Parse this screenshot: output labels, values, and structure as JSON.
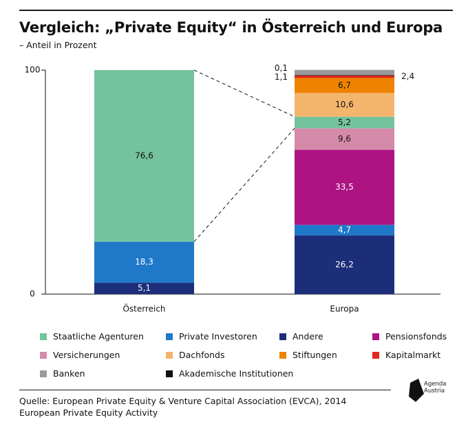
{
  "header": {
    "title": "Vergleich: „Private Equity“ in Österreich und Europa",
    "subtitle": "– Anteil in Prozent"
  },
  "chart_data": {
    "type": "bar",
    "stacked": true,
    "ylim": [
      0,
      100
    ],
    "yticks": [
      "0",
      "100"
    ],
    "categories": [
      "Österreich",
      "Europa"
    ],
    "segment_order": [
      "Andere",
      "Private Investoren",
      "Pensionsfonds",
      "Versicherungen",
      "Staatliche Agenturen",
      "Dachfonds",
      "Stiftungen",
      "Kapitalmarkt",
      "Akademische Institutionen",
      "Banken"
    ],
    "colors": {
      "Staatliche Agenturen": "#74c39c",
      "Private Investoren": "#1f78c8",
      "Andere": "#1c2e7a",
      "Pensionsfonds": "#ad1482",
      "Versicherungen": "#d58aa9",
      "Dachfonds": "#f4b56c",
      "Stiftungen": "#ee8300",
      "Kapitalmarkt": "#e2261b",
      "Banken": "#9a9a9a",
      "Akademische Institutionen": "#111111"
    },
    "label_colors": {
      "Andere": "#ffffff",
      "Private Investoren": "#ffffff",
      "Pensionsfonds": "#ffffff"
    },
    "series": [
      {
        "name": "Staatliche Agenturen",
        "values": [
          76.6,
          5.2
        ],
        "labels": [
          "76,6",
          "5,2"
        ]
      },
      {
        "name": "Private Investoren",
        "values": [
          18.3,
          4.7
        ],
        "labels": [
          "18,3",
          "4,7"
        ]
      },
      {
        "name": "Andere",
        "values": [
          5.1,
          26.2
        ],
        "labels": [
          "5,1",
          "26,2"
        ]
      },
      {
        "name": "Pensionsfonds",
        "values": [
          0,
          33.5
        ],
        "labels": [
          "",
          "33,5"
        ]
      },
      {
        "name": "Versicherungen",
        "values": [
          0,
          9.6
        ],
        "labels": [
          "",
          "9,6"
        ]
      },
      {
        "name": "Dachfonds",
        "values": [
          0,
          10.6
        ],
        "labels": [
          "",
          "10,6"
        ]
      },
      {
        "name": "Stiftungen",
        "values": [
          0,
          6.7
        ],
        "labels": [
          "",
          "6,7"
        ]
      },
      {
        "name": "Kapitalmarkt",
        "values": [
          0,
          1.1
        ],
        "labels": [
          "",
          "1,1"
        ],
        "label_side": "left"
      },
      {
        "name": "Banken",
        "values": [
          0,
          2.4
        ],
        "labels": [
          "",
          "2,4"
        ],
        "label_side": "right"
      },
      {
        "name": "Akademische Institutionen",
        "values": [
          0,
          0.1
        ],
        "labels": [
          "",
          "0,1"
        ],
        "label_side": "left-top"
      }
    ]
  },
  "legend": [
    {
      "name": "Staatliche Agenturen",
      "color": "#74c39c"
    },
    {
      "name": "Private Investoren",
      "color": "#1f78c8"
    },
    {
      "name": "Andere",
      "color": "#1c2e7a"
    },
    {
      "name": "Pensionsfonds",
      "color": "#ad1482"
    },
    {
      "name": "Versicherungen",
      "color": "#d58aa9"
    },
    {
      "name": "Dachfonds",
      "color": "#f4b56c"
    },
    {
      "name": "Stiftungen",
      "color": "#ee8300"
    },
    {
      "name": "Kapitalmarkt",
      "color": "#e2261b"
    },
    {
      "name": "Banken",
      "color": "#9a9a9a"
    },
    {
      "name": "Akademische Institutionen",
      "color": "#111111"
    }
  ],
  "footer": {
    "source_line1": "Quelle: European Private Equity & Venture Capital Association (EVCA), 2014",
    "source_line2": "European Private Equity Activity",
    "logo_line1": "Agenda",
    "logo_line2": "Austria"
  }
}
